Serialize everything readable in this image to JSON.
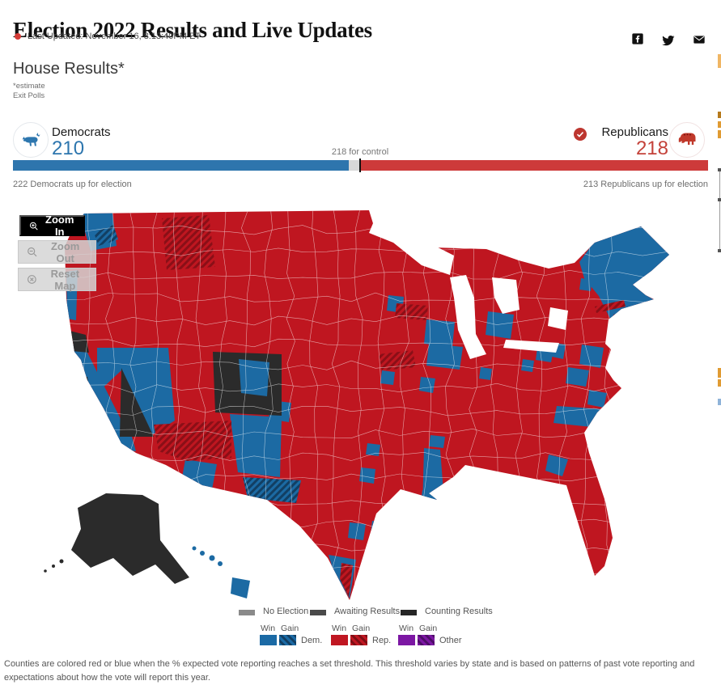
{
  "header": {
    "title": "Election 2022 Results and Live Updates",
    "last_updated": "Last Updated: November 16, 8:13:40PM ET",
    "share_icons": [
      "facebook",
      "twitter",
      "email"
    ]
  },
  "section": {
    "heading": "House Results*",
    "estimate": "*estimate",
    "exit_polls": "Exit Polls"
  },
  "balance_of_power": {
    "democrats": {
      "label": "Democrats",
      "seats": "210",
      "up_for_election": "222 Democrats up for election",
      "color": "#2d76ae"
    },
    "republicans": {
      "label": "Republicans",
      "seats": "218",
      "up_for_election": "213 Republicans up for election",
      "color": "#c4423a",
      "winner_check": true
    },
    "control_label": "218 for control",
    "total_seats": 435,
    "bar": {
      "dem_pct": 48.3,
      "gap_pct": 1.6,
      "rep_pct": 50.1
    }
  },
  "map": {
    "buttons": [
      {
        "label": "Zoom In",
        "enabled": true
      },
      {
        "label": "Zoom Out",
        "enabled": false
      },
      {
        "label": "Reset Map",
        "enabled": false
      }
    ],
    "legend_status": [
      {
        "label": "No Election",
        "color": "#8a8a8a"
      },
      {
        "label": "Awaiting Results",
        "color": "#4a4a4a"
      },
      {
        "label": "Counting Results",
        "color": "#262626"
      }
    ],
    "legend_parties": [
      {
        "label": "Dem.",
        "win_color": "#1b6aa5"
      },
      {
        "label": "Rep.",
        "win_color": "#c01722"
      },
      {
        "label": "Other",
        "win_color": "#7c17a3"
      }
    ],
    "win_label": "Win",
    "gain_label": "Gain",
    "colors": {
      "map_red": "#bf1620",
      "map_blue": "#1c6aa3",
      "counting_black": "#2b2b2b"
    }
  },
  "footer": {
    "note": "Counties are colored red or blue when the % expected vote reporting reaches a set threshold. This threshold varies by state and is based on patterns of past vote reporting and expectations about how the vote will report this year."
  }
}
